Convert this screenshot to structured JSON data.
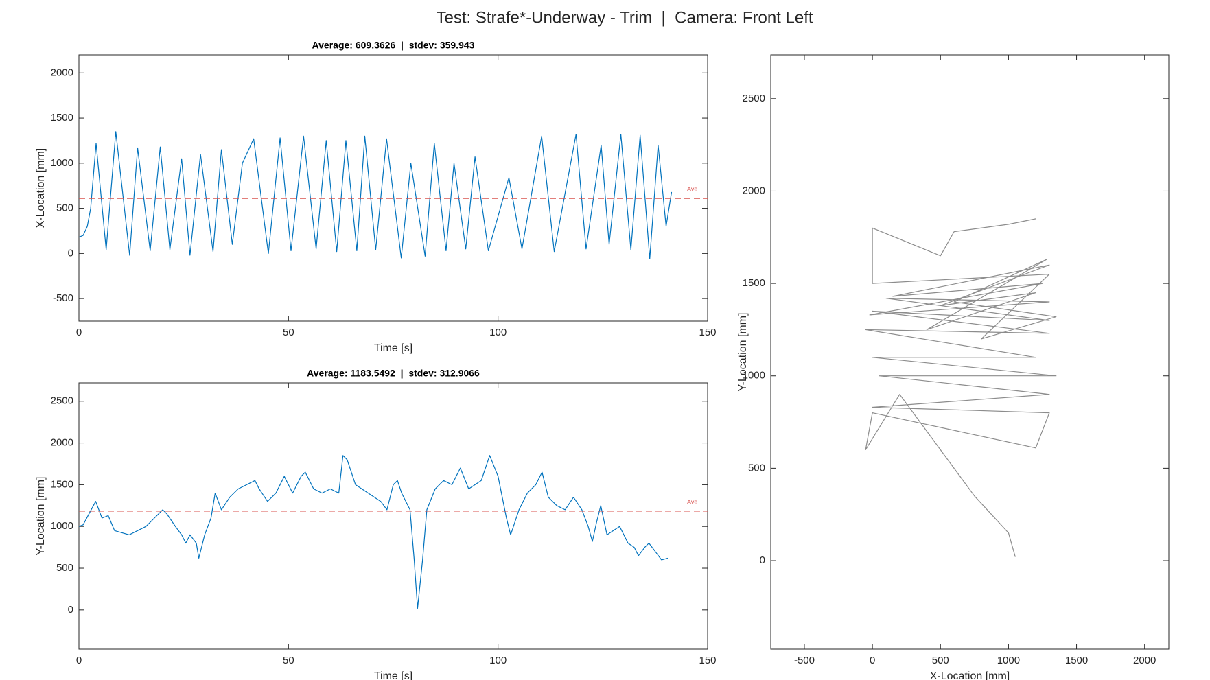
{
  "title": "Test: Strafe*-Underway - Trim  |  Camera: Front Left",
  "chart_data": [
    {
      "type": "line",
      "title": "Average: 609.3626  |  stdev: 359.943",
      "xlabel": "Time [s]",
      "ylabel": "X-Location [mm]",
      "xlim": [
        0,
        150
      ],
      "ylim": [
        -750,
        2200
      ],
      "xticks": [
        0,
        50,
        100,
        150
      ],
      "yticks": [
        -500,
        0,
        500,
        1000,
        1500,
        2000
      ],
      "color": "#0072bd",
      "x": [
        0,
        1,
        2,
        2.8,
        4.1,
        6.5,
        8.8,
        12.1,
        14,
        17,
        19.4,
        21.7,
        24.5,
        26.5,
        29,
        32,
        34,
        36.6,
        39,
        41.7,
        45.2,
        48,
        50.6,
        53.6,
        56.6,
        59,
        61.5,
        63.7,
        66.3,
        68.2,
        70.8,
        73.4,
        76.9,
        79.2,
        82.6,
        84.8,
        87.6,
        89.5,
        92.3,
        94.5,
        97.7,
        102.6,
        105.7,
        110.4,
        113.4,
        118.6,
        121,
        124.6,
        126.5,
        129.3,
        131.7,
        133.9,
        136.2,
        138.2,
        140.1,
        141.4
      ],
      "values": [
        180,
        200,
        300,
        500,
        1220,
        40,
        1350,
        -20,
        1170,
        30,
        1180,
        40,
        1050,
        -20,
        1100,
        20,
        1150,
        100,
        1000,
        1270,
        0,
        1280,
        30,
        1300,
        50,
        1250,
        20,
        1250,
        30,
        1300,
        40,
        1270,
        -50,
        1000,
        -30,
        1220,
        30,
        1000,
        50,
        1070,
        30,
        840,
        50,
        1300,
        20,
        1320,
        50,
        1200,
        100,
        1320,
        40,
        1310,
        -60,
        1200,
        300,
        680
      ],
      "reference_line": {
        "value": 609.3626,
        "label": "Ave",
        "color": "#d9534f"
      }
    },
    {
      "type": "line",
      "title": "Average: 1183.5492  |  stdev: 312.9066",
      "xlabel": "Time [s]",
      "ylabel": "Y-Location [mm]",
      "xlim": [
        0,
        150
      ],
      "ylim": [
        -470,
        2720
      ],
      "xticks": [
        0,
        50,
        100,
        150
      ],
      "yticks": [
        0,
        500,
        1000,
        1500,
        2000,
        2500
      ],
      "color": "#0072bd",
      "x": [
        0,
        1,
        4,
        5.5,
        7,
        8.5,
        12,
        14,
        16,
        18,
        20,
        21,
        23,
        24.5,
        25.5,
        26.5,
        28,
        28.6,
        30,
        31.5,
        32.5,
        34,
        36,
        38,
        42,
        43,
        45,
        47,
        49,
        51,
        53,
        54,
        56,
        58,
        60,
        62,
        63,
        64,
        66,
        69,
        72,
        73.5,
        75,
        76,
        77,
        79,
        80,
        80.8,
        82,
        83,
        85,
        87,
        89,
        91,
        93,
        96,
        98,
        100,
        102,
        103,
        105,
        107,
        109,
        110.5,
        112,
        114,
        116,
        118,
        120,
        121.5,
        122.5,
        123.5,
        124.5,
        126,
        127.5,
        129,
        131,
        132.5,
        133.5,
        135,
        136,
        137.5,
        139,
        140.5
      ],
      "values": [
        1000,
        1020,
        1300,
        1100,
        1130,
        950,
        900,
        950,
        1000,
        1100,
        1200,
        1150,
        1000,
        900,
        800,
        900,
        800,
        620,
        900,
        1100,
        1400,
        1200,
        1350,
        1450,
        1550,
        1450,
        1300,
        1400,
        1600,
        1400,
        1600,
        1650,
        1450,
        1400,
        1450,
        1400,
        1850,
        1800,
        1500,
        1400,
        1300,
        1200,
        1500,
        1550,
        1400,
        1200,
        600,
        20,
        600,
        1200,
        1450,
        1550,
        1500,
        1700,
        1450,
        1550,
        1850,
        1600,
        1100,
        900,
        1200,
        1400,
        1500,
        1650,
        1350,
        1250,
        1200,
        1350,
        1200,
        1000,
        820,
        1050,
        1250,
        900,
        950,
        1000,
        800,
        750,
        650,
        750,
        800,
        700,
        600,
        620
      ],
      "reference_line": {
        "value": 1183.5492,
        "label": "Ave",
        "color": "#d9534f"
      }
    },
    {
      "type": "line",
      "xlabel": "X-Location [mm]",
      "ylabel": "Y-Location [mm]",
      "xlim": [
        -747,
        2178
      ],
      "ylim": [
        -479,
        2737
      ],
      "xticks": [
        -500,
        0,
        500,
        1000,
        1500,
        2000
      ],
      "yticks": [
        0,
        500,
        1000,
        1500,
        2000,
        2500
      ],
      "color": "#8c8c8c",
      "x": [
        1050,
        1000,
        750,
        400,
        200,
        -50,
        0,
        1200,
        1300,
        0,
        1300,
        50,
        1350,
        0,
        1200,
        -50,
        1300,
        0,
        1300,
        100,
        1300,
        -20,
        1250,
        150,
        1300,
        500,
        1200,
        400,
        1280,
        600,
        1350,
        800,
        1300,
        0,
        0,
        500,
        600,
        1000,
        1200
      ],
      "values": [
        20,
        150,
        350,
        700,
        900,
        600,
        800,
        610,
        800,
        830,
        900,
        1000,
        1000,
        1100,
        1100,
        1250,
        1230,
        1350,
        1300,
        1420,
        1400,
        1330,
        1500,
        1430,
        1600,
        1380,
        1450,
        1250,
        1630,
        1400,
        1320,
        1200,
        1550,
        1500,
        1800,
        1650,
        1780,
        1820,
        1850
      ]
    }
  ]
}
